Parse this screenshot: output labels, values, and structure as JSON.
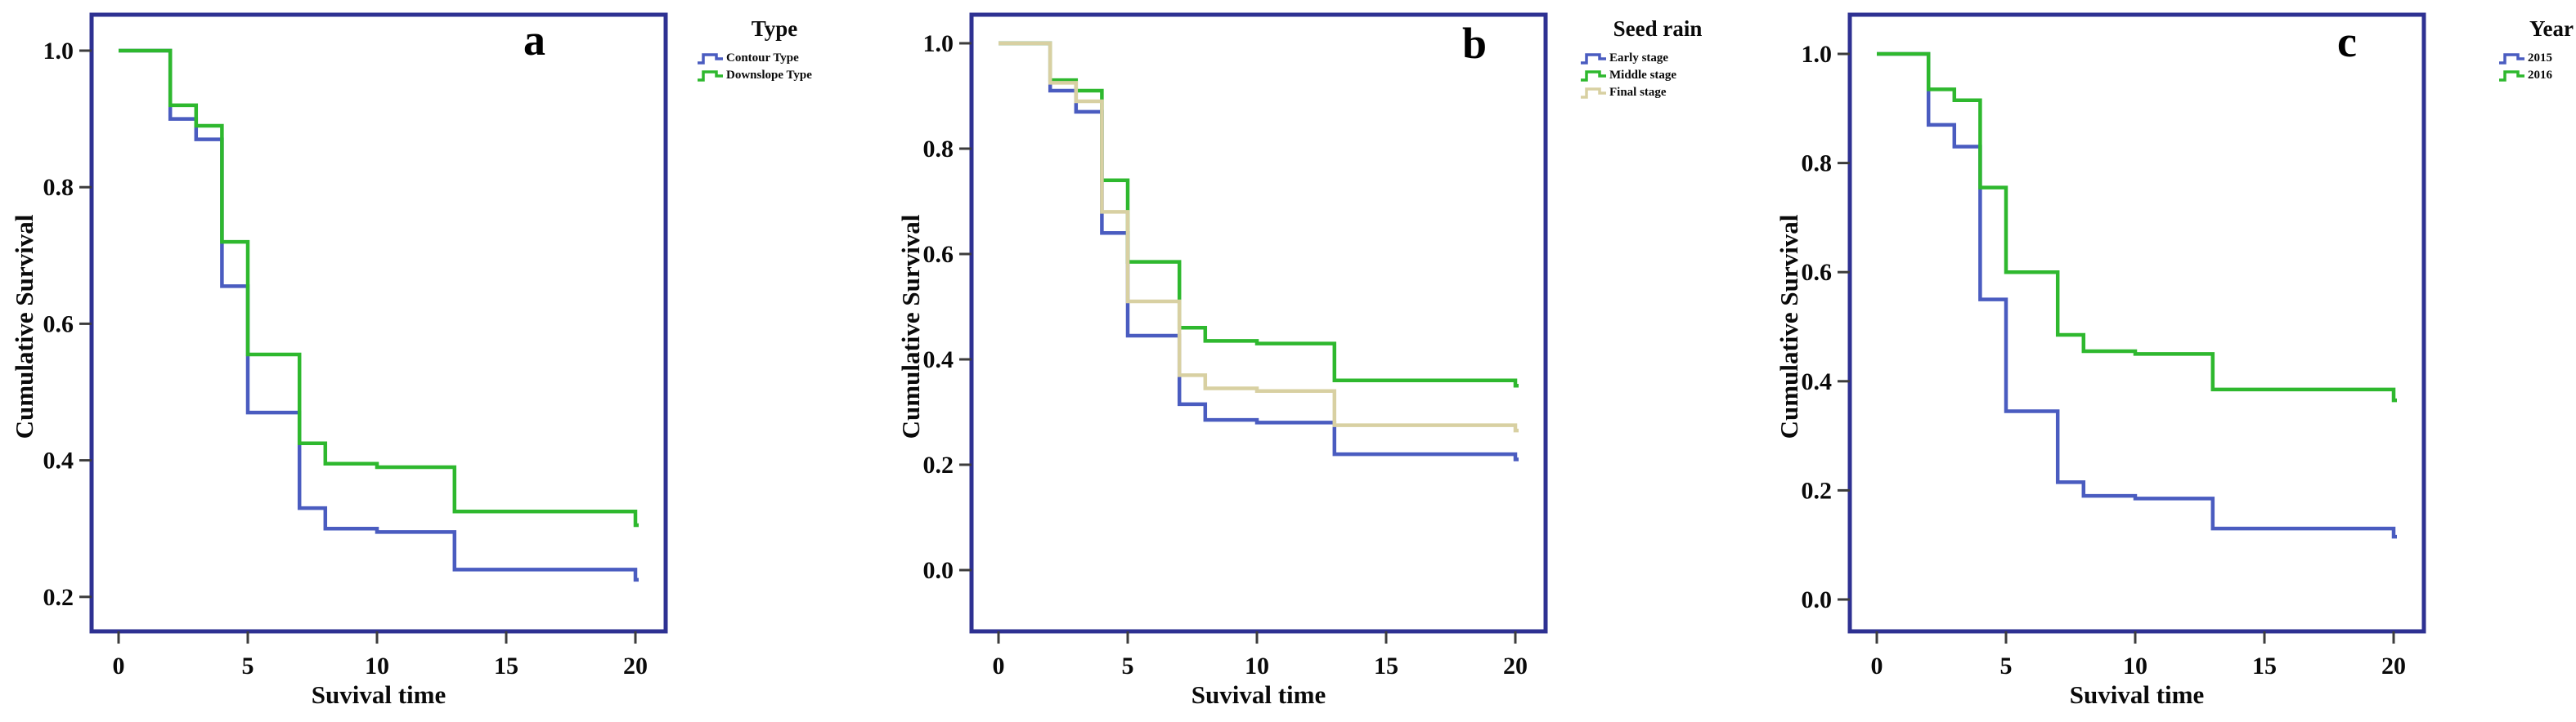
{
  "figure": {
    "xlabel": "Suvival time",
    "ylabel": "Cumulative Survival"
  },
  "colors": {
    "frame_navy": "#2e3192",
    "blue_series": "#4a5cc0",
    "green_series": "#2eb82e",
    "tan_series": "#d8d0a2",
    "tick": "#3c3c3c",
    "text": "#0a0a0a"
  },
  "panels": [
    {
      "letter": "a",
      "legend_title": "Type",
      "legend_items": [
        {
          "label": "Contour Type",
          "color": "#4a5cc0"
        },
        {
          "label": "Downslope Type",
          "color": "#2eb82e"
        }
      ],
      "y_tick_labels": [
        "1.0",
        "0.8",
        "0.6",
        "0.4",
        "0.2"
      ],
      "x_tick_labels": [
        "0",
        "5",
        "10",
        "15",
        "20"
      ]
    },
    {
      "letter": "b",
      "legend_title": "Seed rain",
      "legend_items": [
        {
          "label": "Early stage",
          "color": "#4a5cc0"
        },
        {
          "label": "Middle stage",
          "color": "#2eb82e"
        },
        {
          "label": "Final stage",
          "color": "#d8d0a2"
        }
      ],
      "y_tick_labels": [
        "1.0",
        "0.8",
        "0.6",
        "0.4",
        "0.2",
        "0.0"
      ],
      "x_tick_labels": [
        "0",
        "5",
        "10",
        "15",
        "20"
      ]
    },
    {
      "letter": "c",
      "legend_title": "Year",
      "legend_items": [
        {
          "label": "2015",
          "color": "#4a5cc0"
        },
        {
          "label": "2016",
          "color": "#2eb82e"
        }
      ],
      "y_tick_labels": [
        "1.0",
        "0.8",
        "0.6",
        "0.4",
        "0.2",
        "0.0"
      ],
      "x_tick_labels": [
        "0",
        "5",
        "10",
        "15",
        "20"
      ]
    }
  ],
  "chart_data": [
    {
      "type": "line",
      "subtype": "kaplan-meier-step",
      "panel": "a",
      "legend_title": "Type",
      "xlabel": "Suvival time",
      "ylabel": "Cumulative Survival",
      "xlim": [
        0,
        20
      ],
      "x_ticks": [
        0,
        5,
        10,
        15,
        20
      ],
      "y_ticks": [
        1.0,
        0.8,
        0.6,
        0.4,
        0.2
      ],
      "ylim_drawn": [
        0.15,
        1.05
      ],
      "grid": false,
      "legend_position": "right-outside-top",
      "series": [
        {
          "name": "Contour Type",
          "color": "#4a5cc0",
          "points": [
            [
              0,
              1.0
            ],
            [
              2,
              0.9
            ],
            [
              3,
              0.87
            ],
            [
              4,
              0.655
            ],
            [
              5,
              0.47
            ],
            [
              7,
              0.33
            ],
            [
              8,
              0.3
            ],
            [
              10,
              0.295
            ],
            [
              13,
              0.24
            ],
            [
              20,
              0.225
            ]
          ]
        },
        {
          "name": "Downslope Type",
          "color": "#2eb82e",
          "points": [
            [
              0,
              1.0
            ],
            [
              2,
              0.92
            ],
            [
              3,
              0.89
            ],
            [
              4,
              0.72
            ],
            [
              5,
              0.555
            ],
            [
              7,
              0.425
            ],
            [
              8,
              0.395
            ],
            [
              10,
              0.39
            ],
            [
              13,
              0.325
            ],
            [
              20,
              0.305
            ]
          ]
        }
      ]
    },
    {
      "type": "line",
      "subtype": "kaplan-meier-step",
      "panel": "b",
      "legend_title": "Seed rain",
      "xlabel": "Suvival time",
      "ylabel": "Cumulative Survival",
      "xlim": [
        0,
        20
      ],
      "x_ticks": [
        0,
        5,
        10,
        15,
        20
      ],
      "y_ticks": [
        1.0,
        0.8,
        0.6,
        0.4,
        0.2,
        0.0
      ],
      "ylim_drawn": [
        -0.11,
        1.05
      ],
      "grid": false,
      "legend_position": "right-outside-top",
      "series": [
        {
          "name": "Early stage",
          "color": "#4a5cc0",
          "points": [
            [
              0,
              1.0
            ],
            [
              2,
              0.91
            ],
            [
              3,
              0.87
            ],
            [
              4,
              0.64
            ],
            [
              5,
              0.445
            ],
            [
              7,
              0.315
            ],
            [
              8,
              0.285
            ],
            [
              10,
              0.28
            ],
            [
              13,
              0.22
            ],
            [
              20,
              0.21
            ]
          ]
        },
        {
          "name": "Middle stage",
          "color": "#2eb82e",
          "points": [
            [
              0,
              1.0
            ],
            [
              2,
              0.93
            ],
            [
              3,
              0.91
            ],
            [
              4,
              0.74
            ],
            [
              5,
              0.585
            ],
            [
              7,
              0.46
            ],
            [
              8,
              0.435
            ],
            [
              10,
              0.43
            ],
            [
              13,
              0.36
            ],
            [
              20,
              0.35
            ]
          ]
        },
        {
          "name": "Final stage",
          "color": "#d8d0a2",
          "points": [
            [
              0,
              1.0
            ],
            [
              2,
              0.925
            ],
            [
              3,
              0.89
            ],
            [
              4,
              0.68
            ],
            [
              5,
              0.51
            ],
            [
              7,
              0.37
            ],
            [
              8,
              0.345
            ],
            [
              10,
              0.34
            ],
            [
              13,
              0.275
            ],
            [
              20,
              0.265
            ]
          ]
        }
      ]
    },
    {
      "type": "line",
      "subtype": "kaplan-meier-step",
      "panel": "c",
      "legend_title": "Year",
      "xlabel": "Suvival time",
      "ylabel": "Cumulative Survival",
      "xlim": [
        0,
        20
      ],
      "x_ticks": [
        0,
        5,
        10,
        15,
        20
      ],
      "y_ticks": [
        1.0,
        0.8,
        0.6,
        0.4,
        0.2,
        0.0
      ],
      "ylim_drawn": [
        -0.06,
        1.05
      ],
      "grid": false,
      "legend_position": "right-outside-top",
      "series": [
        {
          "name": "2015",
          "color": "#4a5cc0",
          "points": [
            [
              0,
              1.0
            ],
            [
              2,
              0.87
            ],
            [
              3,
              0.83
            ],
            [
              4,
              0.55
            ],
            [
              5,
              0.345
            ],
            [
              7,
              0.215
            ],
            [
              8,
              0.19
            ],
            [
              10,
              0.185
            ],
            [
              13,
              0.13
            ],
            [
              20,
              0.115
            ]
          ]
        },
        {
          "name": "2016",
          "color": "#2eb82e",
          "points": [
            [
              0,
              1.0
            ],
            [
              2,
              0.935
            ],
            [
              3,
              0.915
            ],
            [
              4,
              0.755
            ],
            [
              5,
              0.6
            ],
            [
              7,
              0.485
            ],
            [
              8,
              0.455
            ],
            [
              10,
              0.45
            ],
            [
              13,
              0.385
            ],
            [
              20,
              0.365
            ]
          ]
        }
      ]
    }
  ]
}
